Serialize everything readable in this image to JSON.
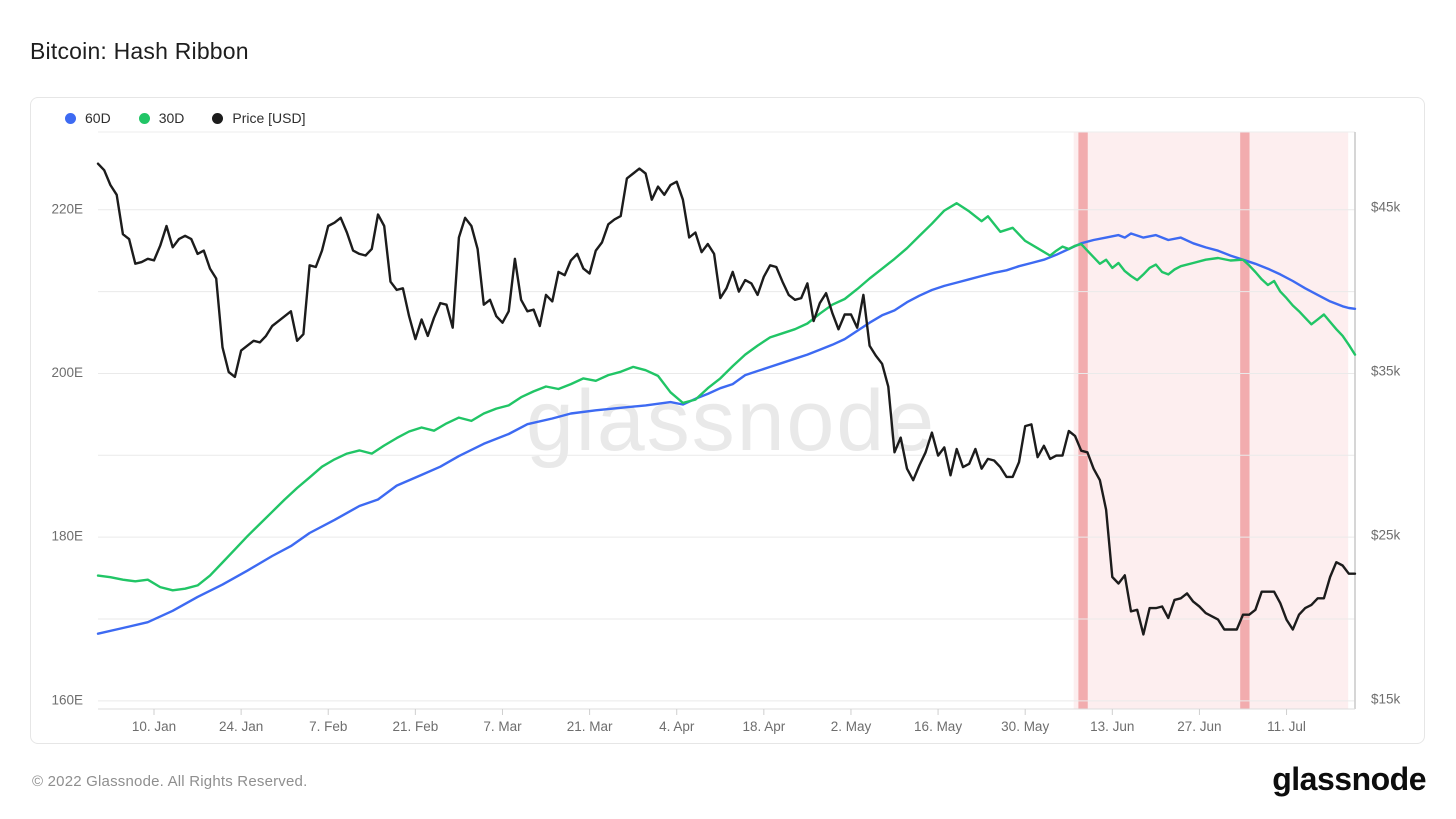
{
  "page": {
    "title": "Bitcoin: Hash Ribbon",
    "footer_copyright": "© 2022 Glassnode. All Rights Reserved.",
    "brand_logo": "glassnode",
    "watermark": "glassnode"
  },
  "legend": [
    {
      "label": "60D",
      "color": "#3d6af2"
    },
    {
      "label": "30D",
      "color": "#21c566"
    },
    {
      "label": "Price [USD]",
      "color": "#1c1c1c"
    }
  ],
  "chart_data": {
    "type": "line",
    "title": "Bitcoin: Hash Ribbon",
    "x_unit": "days since 1. Jan 2022",
    "x_range": [
      0,
      202
    ],
    "x_tick_days": [
      9,
      23,
      37,
      51,
      65,
      79,
      93,
      107,
      121,
      135,
      149,
      163,
      177,
      191
    ],
    "x_tick_labels": [
      "10. Jan",
      "24. Jan",
      "7. Feb",
      "21. Feb",
      "7. Mar",
      "21. Mar",
      "4. Apr",
      "18. Apr",
      "2. May",
      "16. May",
      "30. May",
      "13. Jun",
      "27. Jun",
      "11. Jul"
    ],
    "grid": "horizontal-only",
    "left_axis": {
      "unit": "EH/s",
      "range": [
        159.0,
        229.5
      ],
      "gridline_values": [
        160,
        170,
        180,
        190,
        200,
        210,
        220
      ],
      "ticks": [
        {
          "value": 160,
          "label": "160E"
        },
        {
          "value": 180,
          "label": "180E"
        },
        {
          "value": 200,
          "label": "200E"
        },
        {
          "value": 220,
          "label": "220E"
        }
      ]
    },
    "right_axis": {
      "unit": "USD",
      "range": [
        14.45,
        49.63
      ],
      "ticks": [
        {
          "value": 15,
          "label": "$15k"
        },
        {
          "value": 25,
          "label": "$25k"
        },
        {
          "value": 35,
          "label": "$35k"
        },
        {
          "value": 45,
          "label": "$45k"
        }
      ]
    },
    "highlight_region": {
      "fill": "rgba(240,90,95,0.10)",
      "start_day": 156.8,
      "end_day": 200.9,
      "bar_fill": "rgba(231,105,110,0.50)",
      "bar_width_days": 1.5,
      "bars": [
        {
          "day": 158.3
        },
        {
          "day": 184.3
        }
      ]
    },
    "series": [
      {
        "name": "60D",
        "color": "#3d6af2",
        "axis": "left",
        "points": [
          [
            0,
            168.2
          ],
          [
            4,
            168.9
          ],
          [
            8,
            169.6
          ],
          [
            12,
            171.0
          ],
          [
            16,
            172.7
          ],
          [
            20,
            174.2
          ],
          [
            24,
            175.9
          ],
          [
            28,
            177.7
          ],
          [
            31,
            178.9
          ],
          [
            34,
            180.5
          ],
          [
            38,
            182.1
          ],
          [
            42,
            183.8
          ],
          [
            45,
            184.6
          ],
          [
            48,
            186.3
          ],
          [
            52,
            187.6
          ],
          [
            55,
            188.6
          ],
          [
            58,
            189.9
          ],
          [
            62,
            191.4
          ],
          [
            66,
            192.6
          ],
          [
            69,
            193.8
          ],
          [
            73,
            194.5
          ],
          [
            76,
            195.1
          ],
          [
            80,
            195.5
          ],
          [
            84,
            195.8
          ],
          [
            88,
            196.1
          ],
          [
            92,
            196.5
          ],
          [
            94,
            196.2
          ],
          [
            96,
            196.9
          ],
          [
            98,
            197.5
          ],
          [
            100,
            198.2
          ],
          [
            102,
            198.7
          ],
          [
            104,
            199.8
          ],
          [
            106,
            200.3
          ],
          [
            108,
            200.8
          ],
          [
            110,
            201.3
          ],
          [
            112,
            201.8
          ],
          [
            114,
            202.3
          ],
          [
            116,
            202.9
          ],
          [
            118,
            203.5
          ],
          [
            120,
            204.2
          ],
          [
            122,
            205.2
          ],
          [
            124,
            206.2
          ],
          [
            126,
            207.1
          ],
          [
            128,
            207.7
          ],
          [
            130,
            208.7
          ],
          [
            132,
            209.5
          ],
          [
            134,
            210.2
          ],
          [
            136,
            210.7
          ],
          [
            138,
            211.1
          ],
          [
            140,
            211.5
          ],
          [
            142,
            211.9
          ],
          [
            144,
            212.3
          ],
          [
            146,
            212.6
          ],
          [
            148,
            213.1
          ],
          [
            150,
            213.5
          ],
          [
            152,
            213.9
          ],
          [
            154,
            214.5
          ],
          [
            156,
            215.2
          ],
          [
            158,
            215.9
          ],
          [
            160,
            216.3
          ],
          [
            162,
            216.6
          ],
          [
            164,
            216.9
          ],
          [
            165,
            216.6
          ],
          [
            166,
            217.1
          ],
          [
            168,
            216.6
          ],
          [
            170,
            216.9
          ],
          [
            172,
            216.3
          ],
          [
            174,
            216.6
          ],
          [
            176,
            215.9
          ],
          [
            178,
            215.4
          ],
          [
            180,
            215.0
          ],
          [
            182,
            214.4
          ],
          [
            184,
            213.9
          ],
          [
            186,
            213.4
          ],
          [
            188,
            212.8
          ],
          [
            190,
            212.1
          ],
          [
            192,
            211.3
          ],
          [
            194,
            210.4
          ],
          [
            196,
            209.6
          ],
          [
            198,
            208.8
          ],
          [
            200,
            208.2
          ],
          [
            201,
            208.0
          ],
          [
            202,
            207.9
          ]
        ]
      },
      {
        "name": "30D",
        "color": "#21c566",
        "axis": "left",
        "points": [
          [
            0,
            175.3
          ],
          [
            2,
            175.1
          ],
          [
            4,
            174.8
          ],
          [
            6,
            174.6
          ],
          [
            8,
            174.8
          ],
          [
            10,
            173.9
          ],
          [
            12,
            173.5
          ],
          [
            14,
            173.7
          ],
          [
            16,
            174.1
          ],
          [
            18,
            175.3
          ],
          [
            20,
            176.9
          ],
          [
            22,
            178.5
          ],
          [
            24,
            180.1
          ],
          [
            26,
            181.6
          ],
          [
            28,
            183.1
          ],
          [
            30,
            184.6
          ],
          [
            32,
            186.0
          ],
          [
            34,
            187.3
          ],
          [
            36,
            188.6
          ],
          [
            38,
            189.5
          ],
          [
            40,
            190.2
          ],
          [
            42,
            190.6
          ],
          [
            44,
            190.2
          ],
          [
            46,
            191.2
          ],
          [
            48,
            192.1
          ],
          [
            50,
            192.9
          ],
          [
            52,
            193.4
          ],
          [
            54,
            193.0
          ],
          [
            56,
            193.9
          ],
          [
            58,
            194.6
          ],
          [
            60,
            194.2
          ],
          [
            62,
            195.1
          ],
          [
            64,
            195.7
          ],
          [
            66,
            196.1
          ],
          [
            68,
            197.1
          ],
          [
            70,
            197.8
          ],
          [
            72,
            198.4
          ],
          [
            74,
            198.1
          ],
          [
            76,
            198.7
          ],
          [
            78,
            199.4
          ],
          [
            80,
            199.1
          ],
          [
            82,
            199.8
          ],
          [
            84,
            200.2
          ],
          [
            86,
            200.8
          ],
          [
            88,
            200.4
          ],
          [
            90,
            199.7
          ],
          [
            92,
            197.7
          ],
          [
            94,
            196.4
          ],
          [
            96,
            196.8
          ],
          [
            98,
            198.2
          ],
          [
            100,
            199.4
          ],
          [
            102,
            200.9
          ],
          [
            104,
            202.3
          ],
          [
            106,
            203.4
          ],
          [
            108,
            204.4
          ],
          [
            110,
            204.9
          ],
          [
            112,
            205.4
          ],
          [
            114,
            206.1
          ],
          [
            116,
            207.3
          ],
          [
            118,
            208.4
          ],
          [
            120,
            209.1
          ],
          [
            122,
            210.3
          ],
          [
            124,
            211.6
          ],
          [
            126,
            212.8
          ],
          [
            128,
            214.0
          ],
          [
            130,
            215.3
          ],
          [
            132,
            216.8
          ],
          [
            134,
            218.3
          ],
          [
            136,
            219.9
          ],
          [
            138,
            220.8
          ],
          [
            140,
            219.8
          ],
          [
            142,
            218.6
          ],
          [
            143,
            219.2
          ],
          [
            145,
            217.3
          ],
          [
            147,
            217.8
          ],
          [
            149,
            216.2
          ],
          [
            151,
            215.3
          ],
          [
            153,
            214.4
          ],
          [
            154,
            215.0
          ],
          [
            155,
            215.5
          ],
          [
            156,
            215.2
          ],
          [
            157,
            215.6
          ],
          [
            158,
            215.8
          ],
          [
            159,
            215.0
          ],
          [
            160,
            214.2
          ],
          [
            161,
            213.4
          ],
          [
            162,
            213.9
          ],
          [
            163,
            212.9
          ],
          [
            164,
            213.5
          ],
          [
            165,
            212.5
          ],
          [
            166,
            211.9
          ],
          [
            167,
            211.4
          ],
          [
            168,
            212.1
          ],
          [
            169,
            212.9
          ],
          [
            170,
            213.3
          ],
          [
            171,
            212.4
          ],
          [
            172,
            212.1
          ],
          [
            173,
            212.7
          ],
          [
            174,
            213.1
          ],
          [
            176,
            213.5
          ],
          [
            178,
            213.9
          ],
          [
            180,
            214.1
          ],
          [
            182,
            213.8
          ],
          [
            184,
            213.9
          ],
          [
            185,
            213.2
          ],
          [
            186,
            212.4
          ],
          [
            187,
            211.5
          ],
          [
            188,
            210.8
          ],
          [
            189,
            211.3
          ],
          [
            190,
            210.0
          ],
          [
            191,
            209.2
          ],
          [
            192,
            208.3
          ],
          [
            193,
            207.6
          ],
          [
            194,
            206.8
          ],
          [
            195,
            206.0
          ],
          [
            196,
            206.6
          ],
          [
            197,
            207.2
          ],
          [
            198,
            206.3
          ],
          [
            199,
            205.4
          ],
          [
            200,
            204.6
          ],
          [
            201,
            203.5
          ],
          [
            202,
            202.3
          ]
        ]
      },
      {
        "name": "Price [USD]",
        "color": "#1c1c1c",
        "axis": "right",
        "start_day": 0,
        "values_by_day": [
          47.7,
          47.3,
          46.4,
          45.8,
          43.4,
          43.1,
          41.6,
          41.7,
          41.9,
          41.8,
          42.7,
          43.9,
          42.6,
          43.1,
          43.3,
          43.1,
          42.2,
          42.4,
          41.3,
          40.7,
          36.5,
          35.0,
          34.7,
          36.3,
          36.6,
          36.9,
          36.8,
          37.2,
          37.8,
          38.1,
          38.4,
          38.7,
          36.9,
          37.3,
          41.5,
          41.4,
          42.4,
          43.9,
          44.1,
          44.4,
          43.5,
          42.4,
          42.2,
          42.1,
          42.5,
          44.6,
          43.9,
          40.5,
          40.0,
          40.1,
          38.4,
          37.0,
          38.2,
          37.2,
          38.3,
          39.2,
          39.1,
          37.7,
          43.2,
          44.4,
          43.9,
          42.5,
          39.1,
          39.4,
          38.4,
          38.0,
          38.7,
          41.9,
          39.4,
          38.7,
          38.8,
          37.8,
          39.7,
          39.3,
          41.1,
          40.9,
          41.8,
          42.2,
          41.3,
          41.0,
          42.4,
          42.9,
          44.0,
          44.3,
          44.5,
          46.8,
          47.1,
          47.4,
          47.1,
          45.5,
          46.3,
          45.8,
          46.4,
          46.6,
          45.5,
          43.2,
          43.5,
          42.3,
          42.8,
          42.2,
          39.5,
          40.1,
          41.1,
          39.9,
          40.6,
          40.4,
          39.7,
          40.8,
          41.5,
          41.4,
          40.5,
          39.7,
          39.4,
          39.5,
          40.4,
          38.1,
          39.2,
          39.8,
          38.6,
          37.6,
          38.5,
          38.5,
          37.7,
          39.7,
          36.6,
          36.0,
          35.5,
          34.1,
          30.1,
          31.0,
          29.1,
          28.4,
          29.3,
          30.1,
          31.3,
          29.9,
          30.4,
          28.7,
          30.3,
          29.2,
          29.4,
          30.3,
          29.1,
          29.7,
          29.6,
          29.2,
          28.6,
          28.6,
          29.5,
          31.7,
          31.8,
          29.8,
          30.5,
          29.7,
          29.9,
          29.9,
          31.4,
          31.1,
          30.2,
          30.1,
          29.1,
          28.4,
          26.6,
          22.5,
          22.1,
          22.6,
          20.4,
          20.5,
          19.0,
          20.6,
          20.6,
          20.7,
          20.0,
          21.1,
          21.2,
          21.5,
          21.0,
          20.7,
          20.3,
          20.1,
          19.9,
          19.3,
          19.3,
          19.3,
          20.2,
          20.2,
          20.5,
          21.6,
          21.6,
          21.6,
          20.9,
          19.9,
          19.3,
          20.2,
          20.6,
          20.8,
          21.2,
          21.2,
          22.5,
          23.4,
          23.2,
          22.7,
          22.7
        ]
      }
    ],
    "style": {
      "gridline_color": "#eaeaea",
      "plot_top_border_color": "#ededed",
      "bottom_axis_color": "#dcdcdc",
      "right_axis_color": "#c9c9c9",
      "tick_color": "#cfcfcf",
      "axis_label_color": "#6e6e6e",
      "watermark_color": "#e9e9e9",
      "line_width": 2.4
    }
  }
}
